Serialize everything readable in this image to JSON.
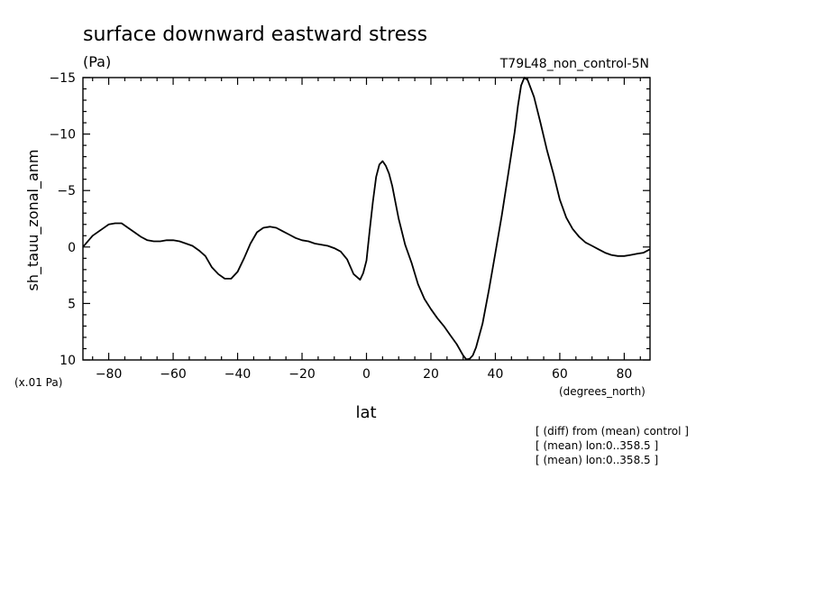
{
  "chart_data": {
    "type": "line",
    "title": "surface downward eastward stress",
    "units": "(Pa)",
    "run_label": "T79L48_non_control-5N",
    "ylabel": "sh_tauu_zonal_anm",
    "yscale_note": "(x.01 Pa)",
    "xlabel": "lat",
    "xunits": "(degrees_north)",
    "xlim": [
      -88,
      88
    ],
    "ylim": [
      10,
      -15
    ],
    "y_inverted": true,
    "xticks": [
      -80,
      -60,
      -40,
      -20,
      0,
      20,
      40,
      60,
      80
    ],
    "xtick_labels": [
      "−80",
      "−60",
      "−40",
      "−20",
      "0",
      "20",
      "40",
      "60",
      "80"
    ],
    "yticks": [
      -15,
      -10,
      -5,
      0,
      5,
      10
    ],
    "ytick_labels": [
      "−15",
      "−10",
      "−5",
      "0",
      "5",
      "10"
    ],
    "annotations": [
      "[ (diff) from (mean) control ]",
      "[ (mean) lon:0..358.5 ]",
      "[ (mean) lon:0..358.5 ]"
    ],
    "series": [
      {
        "x": [
          -88,
          -85,
          -82,
          -80,
          -78,
          -76,
          -74,
          -72,
          -70,
          -68,
          -66,
          -64,
          -62,
          -60,
          -58,
          -56,
          -54,
          -52,
          -50,
          -48,
          -46,
          -44,
          -42,
          -40,
          -38,
          -36,
          -34,
          -32,
          -30,
          -28,
          -26,
          -24,
          -22,
          -20,
          -18,
          -16,
          -14,
          -12,
          -10,
          -8,
          -6,
          -4,
          -2,
          -1,
          0,
          1,
          2,
          3,
          4,
          5,
          6,
          7,
          8,
          10,
          12,
          14,
          16,
          18,
          20,
          22,
          24,
          26,
          28,
          30,
          31,
          32,
          33,
          34,
          36,
          38,
          40,
          42,
          44,
          46,
          47,
          48,
          49,
          50,
          52,
          54,
          56,
          58,
          60,
          62,
          64,
          66,
          68,
          70,
          72,
          74,
          76,
          78,
          80,
          82,
          84,
          86,
          88
        ],
        "y": [
          0,
          -1,
          -1.6,
          -2,
          -2.1,
          -2.1,
          -1.7,
          -1.3,
          -0.9,
          -0.6,
          -0.5,
          -0.5,
          -0.6,
          -0.6,
          -0.5,
          -0.3,
          -0.1,
          0.3,
          0.8,
          1.8,
          2.4,
          2.8,
          2.8,
          2.2,
          1,
          -0.3,
          -1.3,
          -1.7,
          -1.8,
          -1.7,
          -1.4,
          -1.1,
          -0.8,
          -0.6,
          -0.5,
          -0.3,
          -0.2,
          -0.1,
          0.1,
          0.4,
          1.1,
          2.4,
          2.9,
          2.3,
          1.2,
          -1.5,
          -4,
          -6.2,
          -7.3,
          -7.6,
          -7.2,
          -6.5,
          -5.4,
          -2.5,
          -0.2,
          1.4,
          3.3,
          4.6,
          5.5,
          6.3,
          7,
          7.8,
          8.6,
          9.6,
          9.95,
          9.9,
          9.6,
          8.9,
          6.8,
          3.8,
          0.5,
          -2.8,
          -6.5,
          -10.2,
          -12.5,
          -14.3,
          -15,
          -14.8,
          -13.3,
          -11,
          -8.6,
          -6.5,
          -4.2,
          -2.6,
          -1.6,
          -0.9,
          -0.4,
          -0.1,
          0.2,
          0.5,
          0.7,
          0.8,
          0.8,
          0.7,
          0.6,
          0.5,
          0.2
        ]
      }
    ]
  }
}
